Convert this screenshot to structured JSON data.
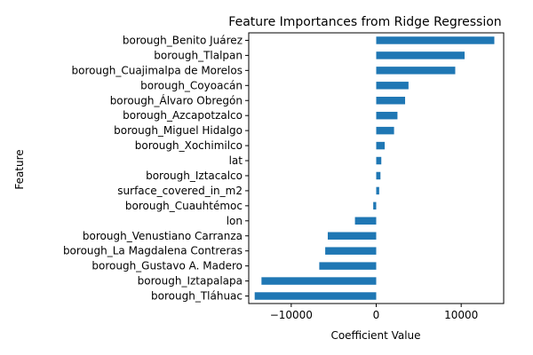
{
  "chart_data": {
    "type": "bar",
    "orientation": "horizontal",
    "title": "Feature Importances from Ridge Regression",
    "xlabel": "Coefficient Value",
    "ylabel": "Feature",
    "xlim": [
      -15000,
      15000
    ],
    "xticks": [
      -10000,
      0,
      10000
    ],
    "xtick_labels": [
      "−10000",
      "0",
      "10000"
    ],
    "grid": false,
    "legend": "none",
    "bar_color": "#1f77b4",
    "categories": [
      "borough_Benito Juárez",
      "borough_Tlalpan",
      "borough_Cuajimalpa de Morelos",
      "borough_Coyoacán",
      "borough_Álvaro Obregón",
      "borough_Azcapotzalco",
      "borough_Miguel Hidalgo",
      "borough_Xochimilco",
      "lat",
      "borough_Iztacalco",
      "surface_covered_in_m2",
      "borough_Cuauhtémoc",
      "lon",
      "borough_Venustiano Carranza",
      "borough_La Magdalena Contreras",
      "borough_Gustavo A. Madero",
      "borough_Iztapalapa",
      "borough_Tláhuac"
    ],
    "values": [
      13900,
      10400,
      9300,
      3800,
      3400,
      2500,
      2100,
      1000,
      600,
      500,
      350,
      -350,
      -2500,
      -5700,
      -6000,
      -6700,
      -13500,
      -14300
    ]
  }
}
